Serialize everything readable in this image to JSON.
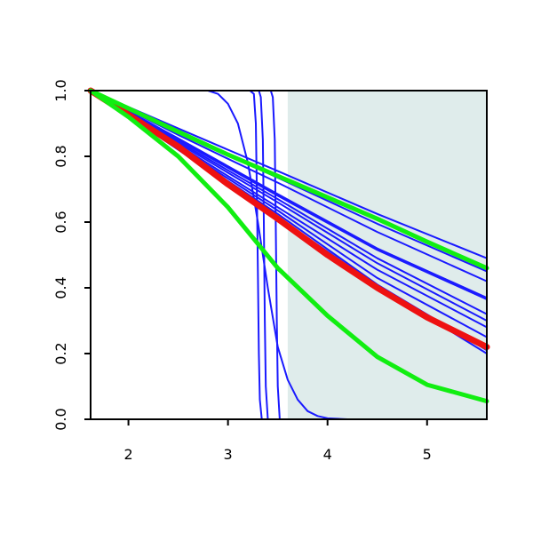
{
  "chart_data": {
    "type": "line",
    "title": "",
    "xlabel": "",
    "ylabel": "",
    "xlim": [
      1.62,
      5.6
    ],
    "ylim": [
      0.0,
      1.0
    ],
    "x_ticks": [
      "2",
      "3",
      "4",
      "5"
    ],
    "y_ticks": [
      "0.0",
      "0.2",
      "0.4",
      "0.6",
      "0.8",
      "1.0"
    ],
    "shaded_region": {
      "x_start": 3.6,
      "x_end": 5.6,
      "color": "#dfeceb"
    },
    "series": [
      {
        "color": "#1a1aff",
        "width": 2,
        "points": [
          [
            1.62,
            1.0
          ],
          [
            2.8,
            1.0
          ],
          [
            2.9,
            0.99
          ],
          [
            3.0,
            0.96
          ],
          [
            3.1,
            0.9
          ],
          [
            3.2,
            0.78
          ],
          [
            3.3,
            0.6
          ],
          [
            3.4,
            0.4
          ],
          [
            3.5,
            0.22
          ],
          [
            3.6,
            0.12
          ],
          [
            3.7,
            0.06
          ],
          [
            3.8,
            0.025
          ],
          [
            3.9,
            0.01
          ],
          [
            4.0,
            0.003
          ],
          [
            4.2,
            0.0
          ],
          [
            5.6,
            0.0
          ]
        ]
      },
      {
        "color": "#1a1aff",
        "width": 2,
        "points": [
          [
            1.62,
            1.0
          ],
          [
            3.22,
            1.0
          ],
          [
            3.26,
            0.99
          ],
          [
            3.28,
            0.9
          ],
          [
            3.29,
            0.7
          ],
          [
            3.3,
            0.45
          ],
          [
            3.31,
            0.2
          ],
          [
            3.32,
            0.06
          ],
          [
            3.34,
            0.0
          ],
          [
            5.6,
            0.0
          ]
        ]
      },
      {
        "color": "#1a1aff",
        "width": 2,
        "points": [
          [
            1.62,
            1.0
          ],
          [
            3.31,
            1.0
          ],
          [
            3.33,
            0.98
          ],
          [
            3.35,
            0.85
          ],
          [
            3.36,
            0.6
          ],
          [
            3.37,
            0.3
          ],
          [
            3.38,
            0.1
          ],
          [
            3.4,
            0.0
          ],
          [
            5.6,
            0.0
          ]
        ]
      },
      {
        "color": "#1a1aff",
        "width": 2,
        "points": [
          [
            1.62,
            1.0
          ],
          [
            3.43,
            1.0
          ],
          [
            3.45,
            0.98
          ],
          [
            3.47,
            0.85
          ],
          [
            3.48,
            0.6
          ],
          [
            3.49,
            0.3
          ],
          [
            3.5,
            0.1
          ],
          [
            3.52,
            0.0
          ],
          [
            5.6,
            0.0
          ]
        ]
      },
      {
        "color": "#1a1aff",
        "width": 2,
        "points": [
          [
            1.62,
            1.0
          ],
          [
            2.5,
            0.885
          ],
          [
            3.5,
            0.755
          ],
          [
            4.5,
            0.625
          ],
          [
            5.6,
            0.49
          ]
        ]
      },
      {
        "color": "#1a1aff",
        "width": 2,
        "points": [
          [
            1.62,
            1.0
          ],
          [
            2.5,
            0.875
          ],
          [
            3.5,
            0.735
          ],
          [
            4.5,
            0.595
          ],
          [
            5.6,
            0.45
          ]
        ]
      },
      {
        "color": "#1a1aff",
        "width": 2,
        "points": [
          [
            1.62,
            1.0
          ],
          [
            2.5,
            0.865
          ],
          [
            3.5,
            0.72
          ],
          [
            4.5,
            0.57
          ],
          [
            5.6,
            0.42
          ]
        ]
      },
      {
        "color": "#1a1aff",
        "width": 2,
        "points": [
          [
            1.62,
            1.0
          ],
          [
            2.5,
            0.855
          ],
          [
            3.5,
            0.685
          ],
          [
            4.5,
            0.52
          ],
          [
            5.6,
            0.37
          ]
        ]
      },
      {
        "color": "#1a1aff",
        "width": 2,
        "points": [
          [
            1.62,
            1.0
          ],
          [
            2.5,
            0.85
          ],
          [
            3.5,
            0.68
          ],
          [
            4.5,
            0.515
          ],
          [
            5.6,
            0.365
          ]
        ]
      },
      {
        "color": "#1a1aff",
        "width": 2,
        "points": [
          [
            1.62,
            1.0
          ],
          [
            2.5,
            0.845
          ],
          [
            3.5,
            0.67
          ],
          [
            4.5,
            0.49
          ],
          [
            5.6,
            0.32
          ]
        ]
      },
      {
        "color": "#1a1aff",
        "width": 2,
        "points": [
          [
            1.62,
            1.0
          ],
          [
            2.5,
            0.84
          ],
          [
            3.5,
            0.66
          ],
          [
            4.5,
            0.475
          ],
          [
            5.6,
            0.3
          ]
        ]
      },
      {
        "color": "#1a1aff",
        "width": 2,
        "points": [
          [
            1.62,
            1.0
          ],
          [
            2.5,
            0.835
          ],
          [
            3.5,
            0.645
          ],
          [
            4.5,
            0.455
          ],
          [
            5.6,
            0.28
          ]
        ]
      },
      {
        "color": "#1a1aff",
        "width": 2,
        "points": [
          [
            1.62,
            1.0
          ],
          [
            2.5,
            0.825
          ],
          [
            3.5,
            0.625
          ],
          [
            4.5,
            0.41
          ],
          [
            5.6,
            0.21
          ]
        ]
      },
      {
        "color": "#1a1aff",
        "width": 2,
        "points": [
          [
            1.62,
            1.0
          ],
          [
            2.5,
            0.82
          ],
          [
            3.5,
            0.615
          ],
          [
            4.5,
            0.405
          ],
          [
            5.6,
            0.2
          ]
        ]
      },
      {
        "color": "#1a1aff",
        "width": 2,
        "points": [
          [
            1.62,
            1.0
          ],
          [
            2.5,
            0.83
          ],
          [
            3.5,
            0.635
          ],
          [
            4.5,
            0.43
          ],
          [
            5.6,
            0.25
          ]
        ]
      },
      {
        "color": "#1a1aff",
        "width": 2,
        "points": [
          [
            1.62,
            1.0
          ],
          [
            3.3,
            1.0
          ],
          [
            3.5,
            1.0
          ],
          [
            5.6,
            1.0
          ]
        ]
      },
      {
        "color": "#ee1111",
        "width": 7,
        "points": [
          [
            1.62,
            1.0
          ],
          [
            2.5,
            0.83
          ],
          [
            3.0,
            0.715
          ],
          [
            3.5,
            0.61
          ],
          [
            4.0,
            0.5
          ],
          [
            4.5,
            0.4
          ],
          [
            5.0,
            0.31
          ],
          [
            5.6,
            0.22
          ]
        ]
      },
      {
        "color": "#11ee11",
        "width": 5,
        "points": [
          [
            1.62,
            1.0
          ],
          [
            2.5,
            0.875
          ],
          [
            3.0,
            0.805
          ],
          [
            3.5,
            0.74
          ],
          [
            4.0,
            0.675
          ],
          [
            4.5,
            0.61
          ],
          [
            5.0,
            0.54
          ],
          [
            5.6,
            0.46
          ]
        ]
      },
      {
        "color": "#11ee11",
        "width": 5,
        "points": [
          [
            1.62,
            1.0
          ],
          [
            2.0,
            0.92
          ],
          [
            2.5,
            0.8
          ],
          [
            3.0,
            0.645
          ],
          [
            3.5,
            0.46
          ],
          [
            4.0,
            0.315
          ],
          [
            4.5,
            0.19
          ],
          [
            5.0,
            0.105
          ],
          [
            5.6,
            0.055
          ]
        ]
      }
    ]
  }
}
